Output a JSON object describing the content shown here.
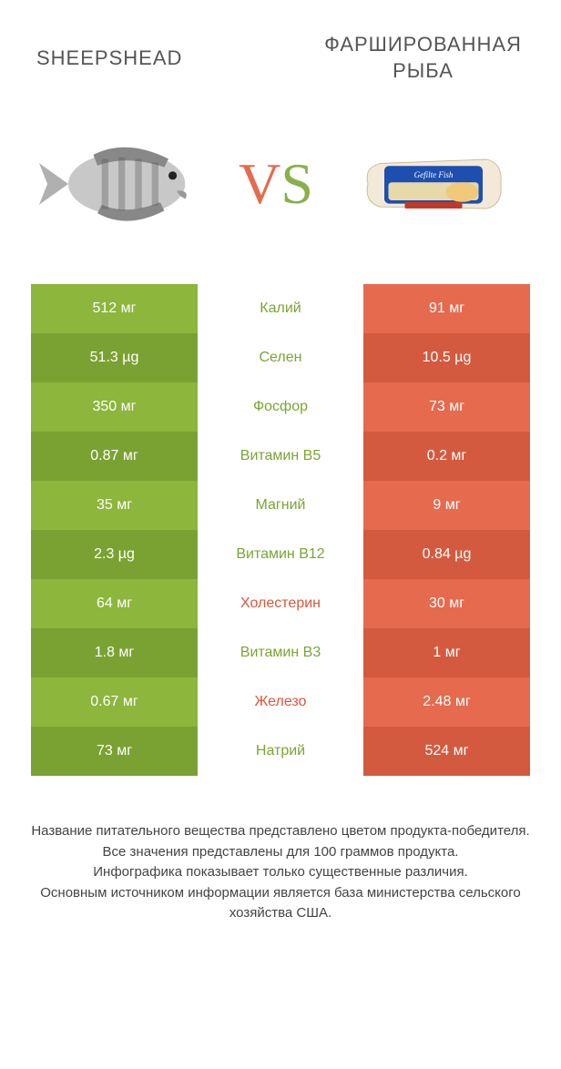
{
  "titles": {
    "left": "SHEEPSHEAD",
    "right": "ФАРШИРОВАННАЯ РЫБА"
  },
  "vs": {
    "v": "V",
    "s": "S"
  },
  "colors": {
    "green": "#8cb63c",
    "darkgreen": "#7aa233",
    "orange": "#e56a4e",
    "darkorange": "#d45a3f",
    "text_green": "#7aa534",
    "text_orange": "#d9573d",
    "bg": "#ffffff"
  },
  "rows": [
    {
      "left": "512 мг",
      "nutrient": "Калий",
      "right": "91 мг",
      "winner": "left",
      "shade": "light"
    },
    {
      "left": "51.3 µg",
      "nutrient": "Селен",
      "right": "10.5 µg",
      "winner": "left",
      "shade": "dark"
    },
    {
      "left": "350 мг",
      "nutrient": "Фосфор",
      "right": "73 мг",
      "winner": "left",
      "shade": "light"
    },
    {
      "left": "0.87 мг",
      "nutrient": "Витамин B5",
      "right": "0.2 мг",
      "winner": "left",
      "shade": "dark"
    },
    {
      "left": "35 мг",
      "nutrient": "Магний",
      "right": "9 мг",
      "winner": "left",
      "shade": "light"
    },
    {
      "left": "2.3 µg",
      "nutrient": "Витамин B12",
      "right": "0.84 µg",
      "winner": "left",
      "shade": "dark"
    },
    {
      "left": "64 мг",
      "nutrient": "Холестерин",
      "right": "30 мг",
      "winner": "right",
      "shade": "light"
    },
    {
      "left": "1.8 мг",
      "nutrient": "Витамин B3",
      "right": "1 мг",
      "winner": "left",
      "shade": "dark"
    },
    {
      "left": "0.67 мг",
      "nutrient": "Железо",
      "right": "2.48 мг",
      "winner": "right",
      "shade": "light"
    },
    {
      "left": "73 мг",
      "nutrient": "Натрий",
      "right": "524 мг",
      "winner": "left",
      "shade": "dark"
    }
  ],
  "footer": [
    "Название питательного вещества представлено цветом продукта-победителя.",
    "Все значения представлены для 100 граммов продукта.",
    "Инфографика показывает только существенные различия.",
    "Основным источником информации является база министерства сельского хозяйства США."
  ]
}
